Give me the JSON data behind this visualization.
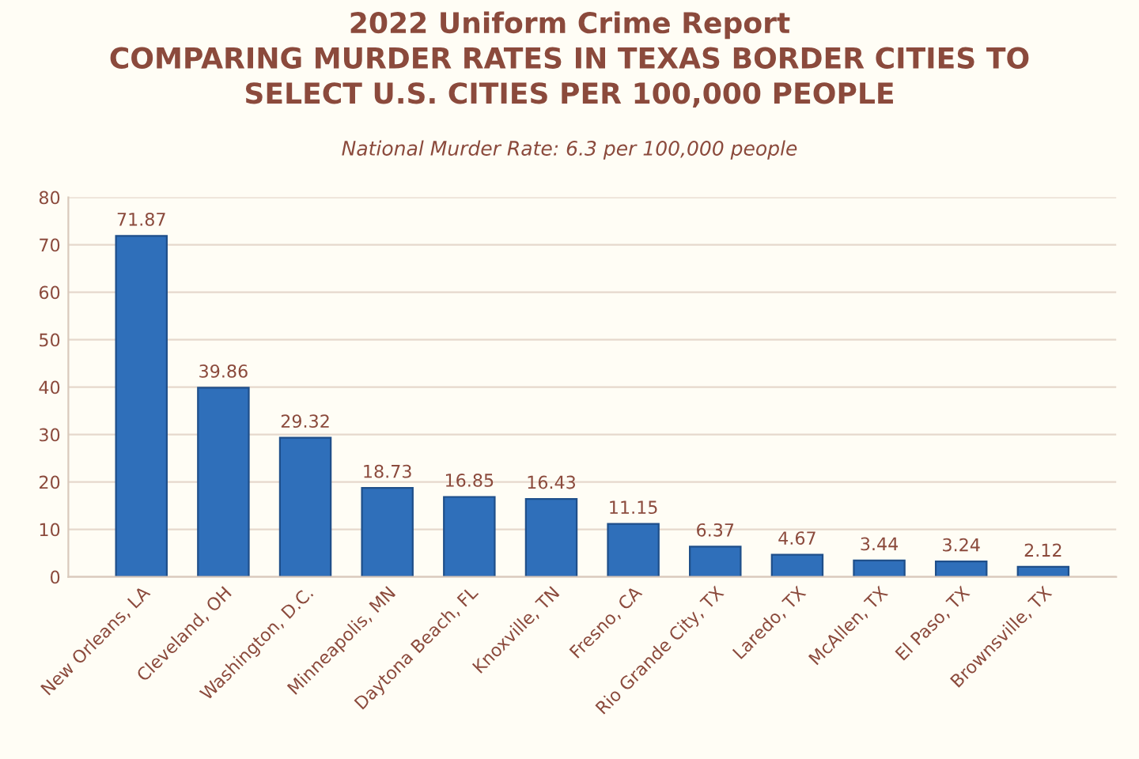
{
  "chart_data": {
    "type": "bar",
    "title": "2022 Uniform Crime Report\nCOMPARING MURDER RATES IN TEXAS BORDER CITIES TO\nSELECT U.S. CITIES PER 100,000 PEOPLE",
    "subtitle": "National Murder Rate: 6.3 per 100,000 people",
    "categories": [
      "New Orleans, LA",
      "Cleveland, OH",
      "Washington, D.C.",
      "Minneapolis, MN",
      "Daytona Beach, FL",
      "Knoxville, TN",
      "Fresno, CA",
      "Rio Grande City, TX",
      "Laredo, TX",
      "McAllen, TX",
      "El Paso, TX",
      "Brownsville, TX"
    ],
    "values": [
      71.87,
      39.86,
      29.32,
      18.73,
      16.85,
      16.43,
      11.15,
      6.37,
      4.67,
      3.44,
      3.24,
      2.12
    ],
    "color": "#2f6fba",
    "data_labels": true,
    "grid": "y",
    "legend": false,
    "ylim": [
      0,
      80
    ],
    "yticks": [
      0,
      10,
      20,
      30,
      40,
      50,
      60,
      70,
      80
    ]
  }
}
